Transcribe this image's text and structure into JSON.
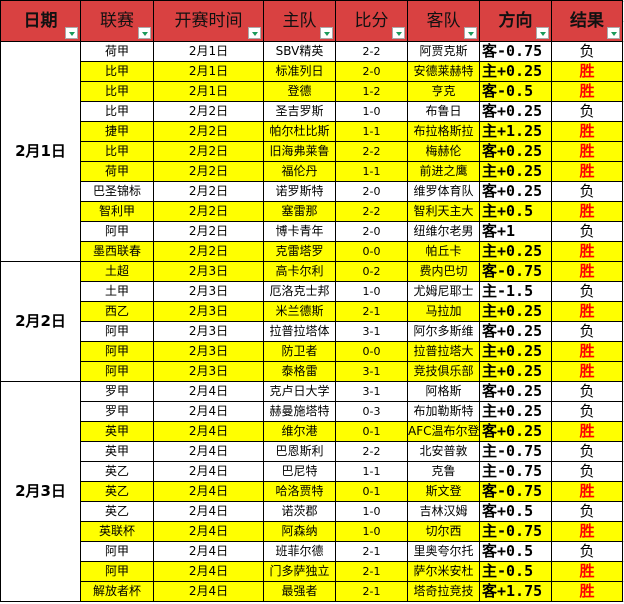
{
  "headers": [
    "日期",
    "联赛",
    "开赛时间",
    "主队",
    "比分",
    "客队",
    "方向",
    "结果"
  ],
  "colors": {
    "header": "#d94141",
    "win_row": "#ffff00",
    "win_text": "#ff0000"
  },
  "groups": [
    {
      "date": "2月1日",
      "rows": [
        {
          "league": "荷甲",
          "time": "2月1日",
          "home": "SBV精英",
          "score": "2-2",
          "away": "阿贾克斯",
          "dir": "客-0.75",
          "result": "负"
        },
        {
          "league": "比甲",
          "time": "2月1日",
          "home": "标准列日",
          "score": "2-0",
          "away": "安德莱赫特",
          "dir": "主+0.25",
          "result": "胜"
        },
        {
          "league": "比甲",
          "time": "2月1日",
          "home": "登德",
          "score": "1-2",
          "away": "亨克",
          "dir": "客-0.5",
          "result": "胜"
        },
        {
          "league": "比甲",
          "time": "2月2日",
          "home": "圣吉罗斯",
          "score": "1-0",
          "away": "布鲁日",
          "dir": "客+0.25",
          "result": "负"
        },
        {
          "league": "捷甲",
          "time": "2月2日",
          "home": "帕尔杜比斯",
          "score": "1-1",
          "away": "布拉格斯拉",
          "dir": "主+1.25",
          "result": "胜"
        },
        {
          "league": "比甲",
          "time": "2月2日",
          "home": "旧海弗莱鲁",
          "score": "2-2",
          "away": "梅赫伦",
          "dir": "客+0.25",
          "result": "胜"
        },
        {
          "league": "荷甲",
          "time": "2月2日",
          "home": "福伦丹",
          "score": "1-1",
          "away": "前进之鹰",
          "dir": "主+0.25",
          "result": "胜"
        },
        {
          "league": "巴圣锦标",
          "time": "2月2日",
          "home": "诺罗斯特",
          "score": "2-0",
          "away": "维罗体育队",
          "dir": "客+0.25",
          "result": "负"
        },
        {
          "league": "智利甲",
          "time": "2月2日",
          "home": "塞雷那",
          "score": "2-2",
          "away": "智利天主大",
          "dir": "主+0.5",
          "result": "胜"
        },
        {
          "league": "阿甲",
          "time": "2月2日",
          "home": "博卡青年",
          "score": "2-0",
          "away": "纽维尔老男",
          "dir": "客+1",
          "result": "负"
        },
        {
          "league": "墨西联春",
          "time": "2月2日",
          "home": "克雷塔罗",
          "score": "0-0",
          "away": "帕丘卡",
          "dir": "主+0.25",
          "result": "胜"
        }
      ]
    },
    {
      "date": "2月2日",
      "rows": [
        {
          "league": "土超",
          "time": "2月3日",
          "home": "高卡尔利",
          "score": "0-2",
          "away": "费内巴切",
          "dir": "客-0.75",
          "result": "胜"
        },
        {
          "league": "土甲",
          "time": "2月3日",
          "home": "厄洛克士邦",
          "score": "1-0",
          "away": "尤姆尼耶士",
          "dir": "主-1.5",
          "result": "负"
        },
        {
          "league": "西乙",
          "time": "2月3日",
          "home": "米兰德斯",
          "score": "2-1",
          "away": "马拉加",
          "dir": "主+0.25",
          "result": "胜"
        },
        {
          "league": "阿甲",
          "time": "2月3日",
          "home": "拉普拉塔体",
          "score": "3-1",
          "away": "阿尔多斯维",
          "dir": "客+0.25",
          "result": "负"
        },
        {
          "league": "阿甲",
          "time": "2月3日",
          "home": "防卫者",
          "score": "0-0",
          "away": "拉普拉塔大",
          "dir": "主+0.25",
          "result": "胜"
        },
        {
          "league": "阿甲",
          "time": "2月3日",
          "home": "泰格雷",
          "score": "3-1",
          "away": "竞技俱乐部",
          "dir": "主+0.25",
          "result": "胜"
        }
      ]
    },
    {
      "date": "2月3日",
      "rows": [
        {
          "league": "罗甲",
          "time": "2月4日",
          "home": "克卢日大学",
          "score": "3-1",
          "away": "阿格斯",
          "dir": "客+0.25",
          "result": "负"
        },
        {
          "league": "罗甲",
          "time": "2月4日",
          "home": "赫曼施塔特",
          "score": "0-3",
          "away": "布加勒斯特",
          "dir": "主+0.25",
          "result": "负"
        },
        {
          "league": "英甲",
          "time": "2月4日",
          "home": "维尔港",
          "score": "0-1",
          "away": "AFC温布尔登",
          "dir": "客+0.25",
          "result": "胜"
        },
        {
          "league": "英甲",
          "time": "2月4日",
          "home": "巴恩斯利",
          "score": "2-2",
          "away": "北安普敦",
          "dir": "主-0.75",
          "result": "负"
        },
        {
          "league": "英乙",
          "time": "2月4日",
          "home": "巴尼特",
          "score": "1-1",
          "away": "克鲁",
          "dir": "主-0.75",
          "result": "负"
        },
        {
          "league": "英乙",
          "time": "2月4日",
          "home": "哈洛贾特",
          "score": "0-1",
          "away": "斯文登",
          "dir": "客-0.75",
          "result": "胜"
        },
        {
          "league": "英乙",
          "time": "2月4日",
          "home": "诺茨郡",
          "score": "1-0",
          "away": "吉林汉姆",
          "dir": "客+0.5",
          "result": "负"
        },
        {
          "league": "英联杯",
          "time": "2月4日",
          "home": "阿森纳",
          "score": "1-0",
          "away": "切尔西",
          "dir": "主-0.75",
          "result": "胜"
        },
        {
          "league": "阿甲",
          "time": "2月4日",
          "home": "班菲尔德",
          "score": "2-1",
          "away": "里奥夸尔托",
          "dir": "客+0.5",
          "result": "负"
        },
        {
          "league": "阿甲",
          "time": "2月4日",
          "home": "门多萨独立",
          "score": "2-1",
          "away": "萨尔米安杜",
          "dir": "主-0.5",
          "result": "胜"
        },
        {
          "league": "解放者杯",
          "time": "2月4日",
          "home": "最强者",
          "score": "2-1",
          "away": "塔奇拉竞技",
          "dir": "客+1.75",
          "result": "胜"
        }
      ]
    }
  ]
}
